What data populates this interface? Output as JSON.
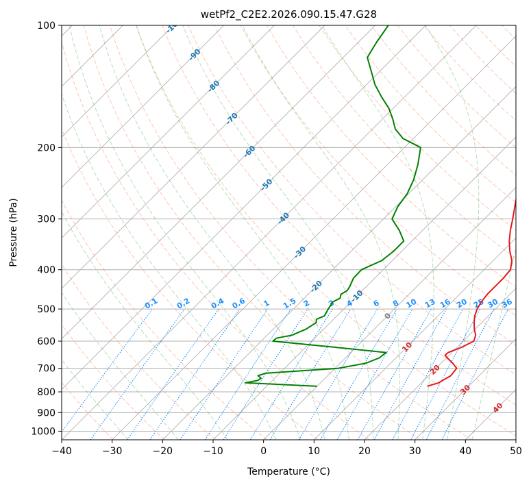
{
  "chart_data": {
    "type": "skew-t",
    "title": "wetPf2_C2E2.2026.090.15.47.G28",
    "xlabel": "Temperature (°C)",
    "ylabel": "Pressure (hPa)",
    "xlim": [
      -40,
      50
    ],
    "ylim": [
      1050,
      100
    ],
    "x_ticks": [
      "−40",
      "−30",
      "−20",
      "−10",
      "0",
      "10",
      "20",
      "30",
      "40",
      "50"
    ],
    "x_tick_values": [
      -40,
      -30,
      -20,
      -10,
      0,
      10,
      20,
      30,
      40,
      50
    ],
    "y_ticks": [
      "100",
      "200",
      "300",
      "400",
      "500",
      "600",
      "700",
      "800",
      "900",
      "1000"
    ],
    "y_tick_values": [
      100,
      200,
      300,
      400,
      500,
      600,
      700,
      800,
      900,
      1000
    ],
    "colors": {
      "temperature": "#e31a1c",
      "dewpoint": "#008000",
      "dry_adiabat": "#ff7f50",
      "moist_adiabat": "#2ca02c",
      "mixing_ratio": "#1e90ff",
      "isotherm": "#808080",
      "isotherm_label": "#1f77b4",
      "special_label": "#d62728",
      "grid": "#b0b0b0"
    },
    "series": [
      {
        "name": "Temperature",
        "color": "#e31a1c",
        "points": [
          [
            775,
            21.8
          ],
          [
            760,
            23.4
          ],
          [
            730,
            24.4
          ],
          [
            700,
            24.1
          ],
          [
            680,
            22.3
          ],
          [
            660,
            20.2
          ],
          [
            650,
            19.2
          ],
          [
            640,
            19.3
          ],
          [
            620,
            21.0
          ],
          [
            600,
            22.1
          ],
          [
            580,
            21.3
          ],
          [
            560,
            19.8
          ],
          [
            540,
            18.5
          ],
          [
            520,
            17.3
          ],
          [
            500,
            16.4
          ],
          [
            480,
            15.8
          ],
          [
            460,
            15.5
          ],
          [
            440,
            15.5
          ],
          [
            420,
            15.5
          ],
          [
            400,
            15.2
          ],
          [
            380,
            13.7
          ],
          [
            360,
            11.4
          ],
          [
            340,
            9.3
          ],
          [
            320,
            7.4
          ],
          [
            300,
            5.6
          ],
          [
            280,
            3.6
          ],
          [
            260,
            1.5
          ],
          [
            240,
            -0.9
          ],
          [
            220,
            -3.6
          ],
          [
            200,
            -6.6
          ],
          [
            180,
            -10.0
          ],
          [
            160,
            -14.1
          ],
          [
            150,
            -16.6
          ],
          [
            140,
            -19.3
          ],
          [
            130,
            -21.2
          ],
          [
            120,
            -21.2
          ],
          [
            110,
            -21.5
          ],
          [
            100,
            -21.6
          ]
        ]
      },
      {
        "name": "Dewpoint",
        "color": "#008000",
        "points": [
          [
            775,
            0.0
          ],
          [
            760,
            -14.9
          ],
          [
            750,
            -12.9
          ],
          [
            740,
            -12.7
          ],
          [
            730,
            -13.8
          ],
          [
            720,
            -12.8
          ],
          [
            710,
            -6.1
          ],
          [
            700,
            0.6
          ],
          [
            680,
            5.1
          ],
          [
            660,
            6.7
          ],
          [
            640,
            7.0
          ],
          [
            620,
            -5.0
          ],
          [
            600,
            -17.7
          ],
          [
            590,
            -17.6
          ],
          [
            580,
            -15.1
          ],
          [
            560,
            -13.5
          ],
          [
            540,
            -12.8
          ],
          [
            530,
            -13.4
          ],
          [
            520,
            -12.5
          ],
          [
            500,
            -13.1
          ],
          [
            480,
            -13.6
          ],
          [
            470,
            -12.9
          ],
          [
            460,
            -13.5
          ],
          [
            450,
            -13.0
          ],
          [
            440,
            -13.3
          ],
          [
            420,
            -14.2
          ],
          [
            400,
            -14.3
          ],
          [
            380,
            -12.1
          ],
          [
            360,
            -11.6
          ],
          [
            340,
            -11.6
          ],
          [
            320,
            -14.6
          ],
          [
            300,
            -18.3
          ],
          [
            280,
            -19.6
          ],
          [
            260,
            -20.3
          ],
          [
            240,
            -21.8
          ],
          [
            220,
            -24.0
          ],
          [
            200,
            -26.8
          ],
          [
            190,
            -32.1
          ],
          [
            180,
            -35.5
          ],
          [
            170,
            -38.0
          ],
          [
            160,
            -40.9
          ],
          [
            150,
            -44.6
          ],
          [
            140,
            -48.3
          ],
          [
            130,
            -51.6
          ],
          [
            120,
            -55.2
          ],
          [
            110,
            -56.4
          ],
          [
            100,
            -57.4
          ]
        ]
      }
    ],
    "isotherm_labels": [
      "-100",
      "-90",
      "-80",
      "-70",
      "-60",
      "-50",
      "-40",
      "-30",
      "-20",
      "-10",
      "0",
      "10",
      "20",
      "30",
      "40"
    ],
    "isotherm_label_values": [
      -100,
      -90,
      -80,
      -70,
      -60,
      -50,
      -40,
      -30,
      -20,
      -10,
      0,
      10,
      20,
      30,
      40
    ],
    "mixing_ratio_labels": [
      "0.1",
      "0.2",
      "0.4",
      "0.6",
      "1",
      "1.5",
      "2",
      "3",
      "4",
      "6",
      "8",
      "10",
      "13",
      "16",
      "20",
      "25",
      "30",
      "36"
    ],
    "mixing_ratio_values": [
      0.1,
      0.2,
      0.4,
      0.6,
      1,
      1.5,
      2,
      3,
      4,
      6,
      8,
      10,
      13,
      16,
      20,
      25,
      30,
      36
    ],
    "mixing_ratio_label_pressure": 500,
    "dry_adiabat_theta_k": [
      240,
      250,
      260,
      270,
      280,
      290,
      300,
      310,
      320,
      330,
      340,
      350,
      360,
      370,
      380,
      390,
      400,
      410,
      420,
      430,
      440,
      450,
      460,
      470,
      480,
      490,
      500,
      520,
      540,
      560,
      580
    ],
    "moist_adiabat_start_c": [
      -30,
      -20,
      -10,
      0,
      5,
      10,
      15,
      20,
      25,
      30,
      35,
      40
    ],
    "grid": true,
    "legend": "none"
  }
}
